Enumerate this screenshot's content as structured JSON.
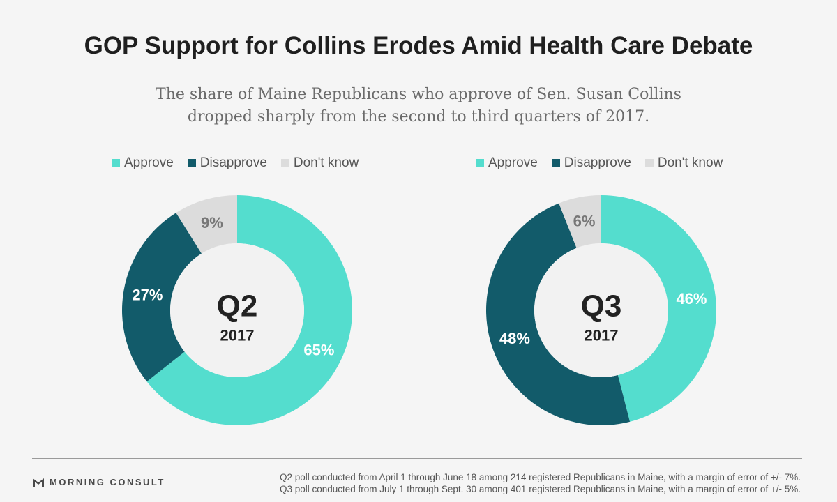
{
  "title": "GOP Support for Collins Erodes Amid Health Care Debate",
  "subtitle_line1": "The share of Maine Republicans who approve of Sen. Susan Collins",
  "subtitle_line2": "dropped sharply from the second to third quarters of 2017.",
  "legend": [
    "Approve",
    "Disapprove",
    "Don't know"
  ],
  "colors": {
    "approve": "#54ddce",
    "disapprove": "#125b6a",
    "dont_know": "#dcdcdc",
    "center": "#f2f2f2"
  },
  "chart_data": [
    {
      "type": "pie",
      "variant": "donut",
      "center_label": "Q2",
      "center_sublabel": "2017",
      "slices": [
        {
          "label": "Approve",
          "value": 65,
          "text": "65%"
        },
        {
          "label": "Disapprove",
          "value": 27,
          "text": "27%"
        },
        {
          "label": "Don't know",
          "value": 9,
          "text": "9%"
        }
      ]
    },
    {
      "type": "pie",
      "variant": "donut",
      "center_label": "Q3",
      "center_sublabel": "2017",
      "slices": [
        {
          "label": "Approve",
          "value": 46,
          "text": "46%"
        },
        {
          "label": "Disapprove",
          "value": 48,
          "text": "48%"
        },
        {
          "label": "Don't know",
          "value": 6,
          "text": "6%"
        }
      ]
    }
  ],
  "footer": {
    "brand": "MORNING CONSULT",
    "note_q2": "Q2 poll conducted from April 1 through June 18 among 214 registered Republicans in Maine, with a margin of error of +/- 7%.",
    "note_q3": "Q3 poll conducted from July 1 through Sept. 30 among 401 registered Republicans in Maine, with a margin of error of +/- 5%."
  }
}
